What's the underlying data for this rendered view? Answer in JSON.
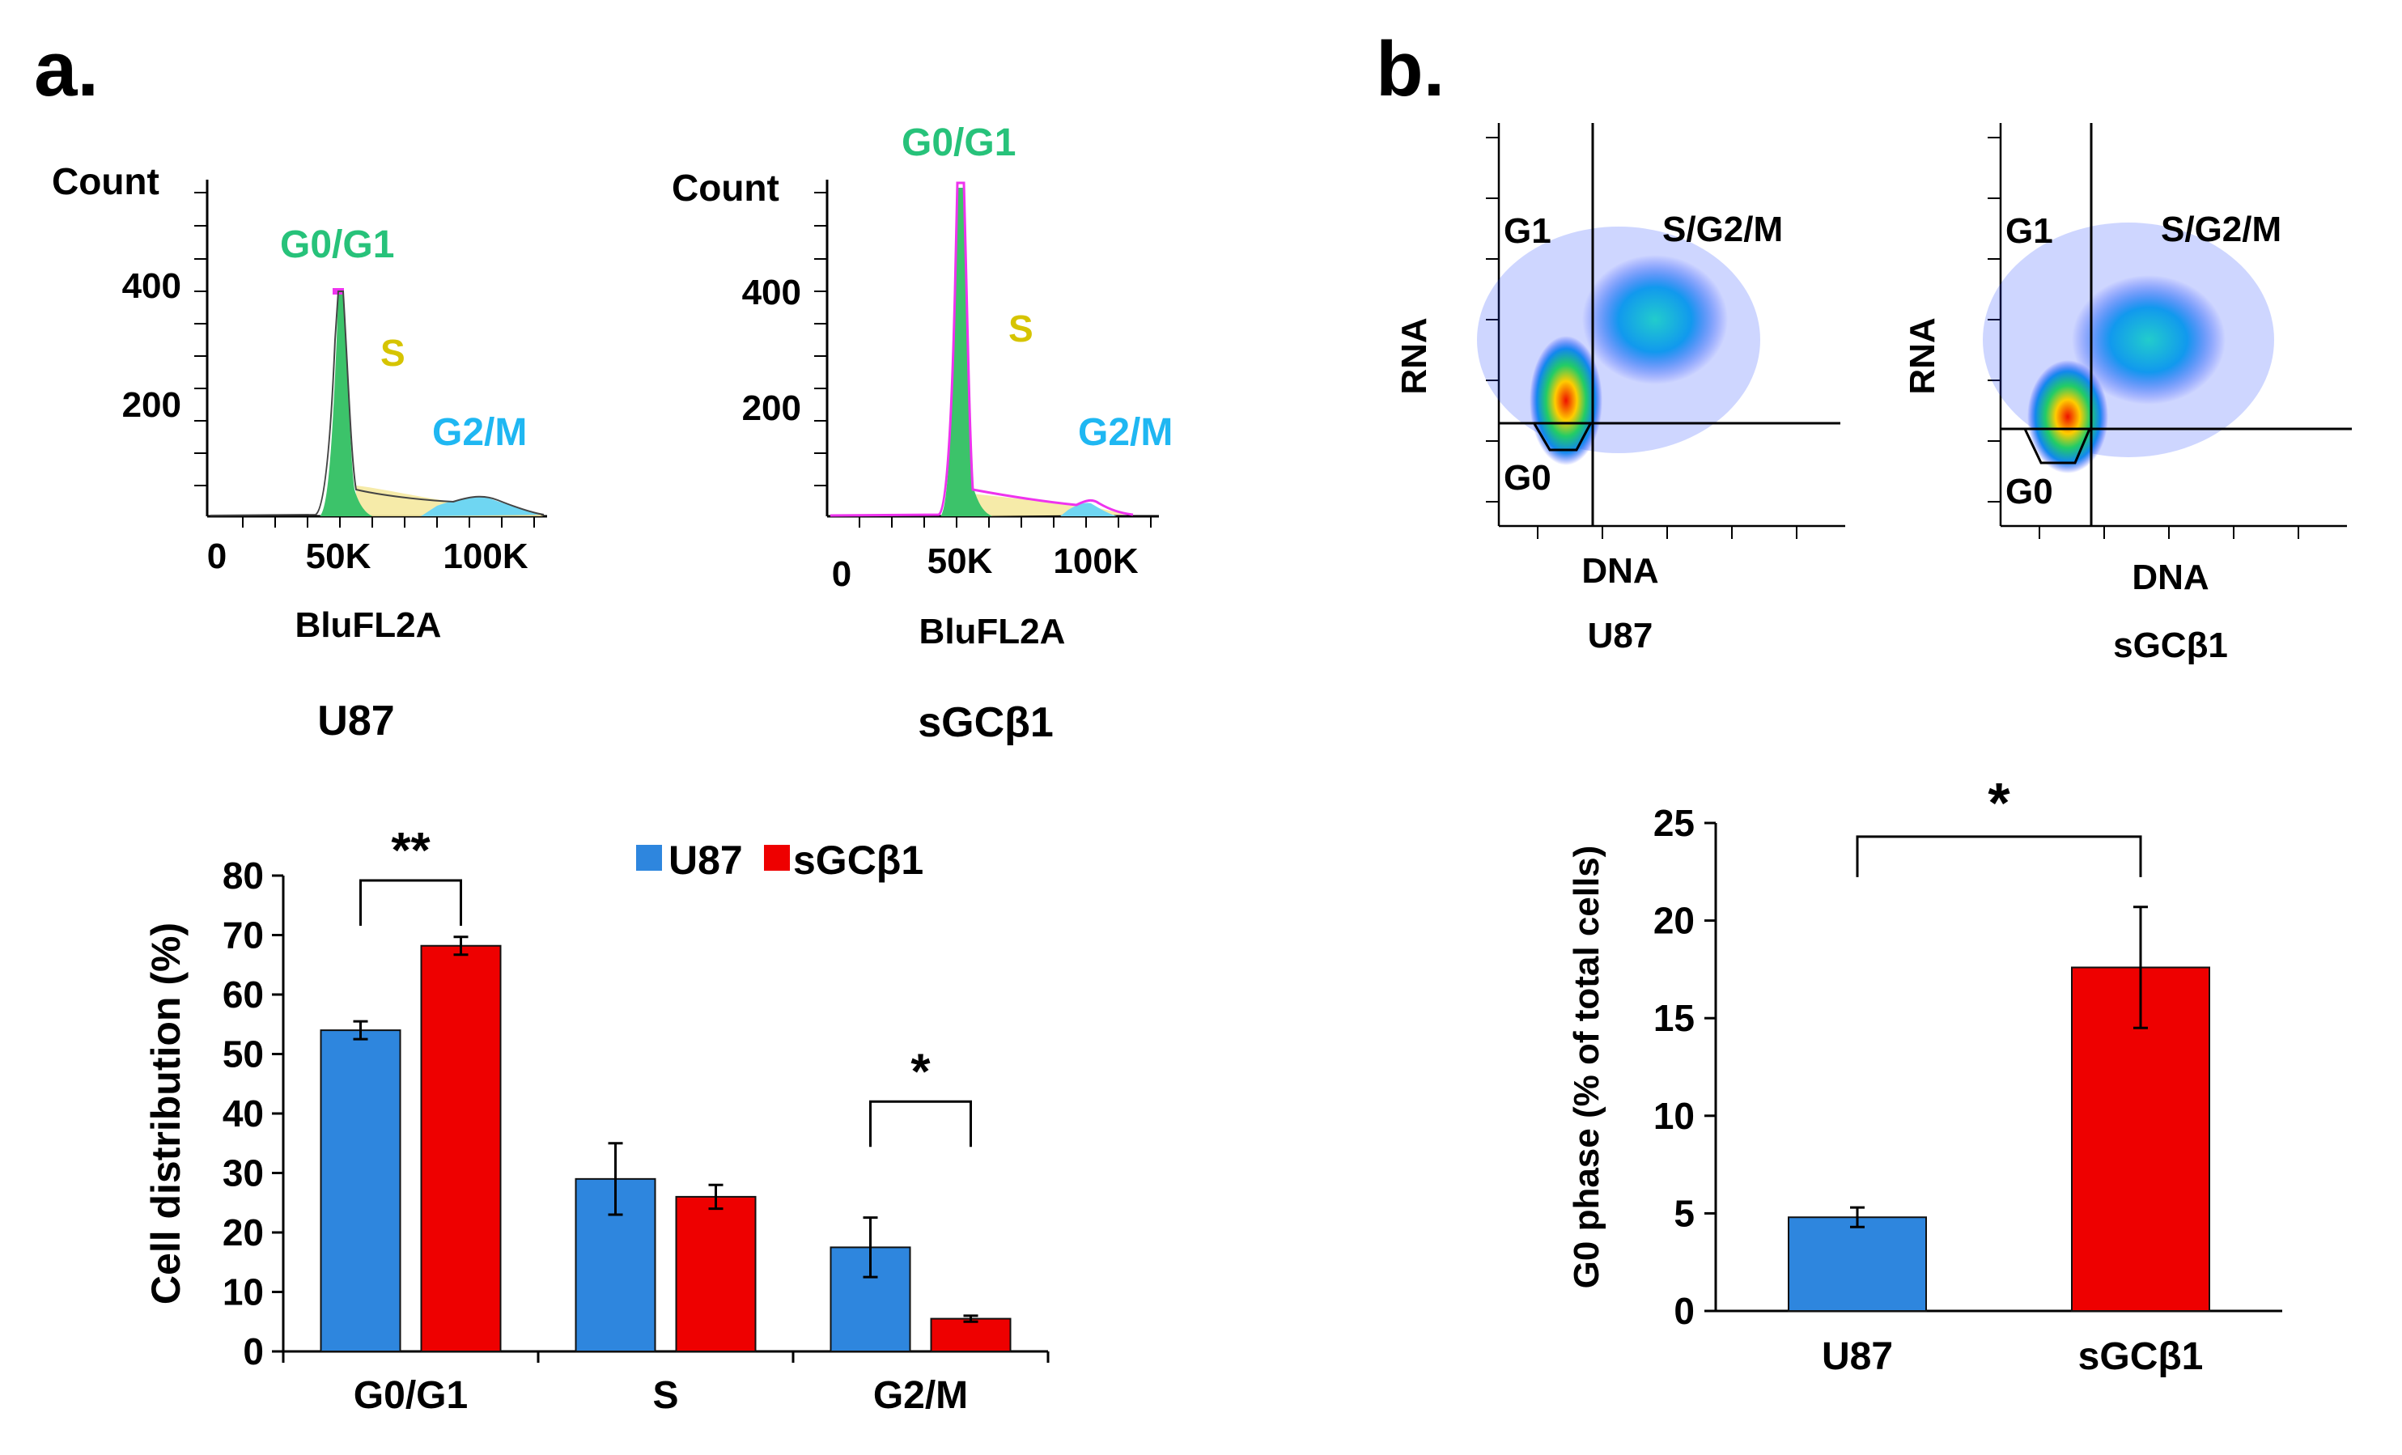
{
  "panel_a": {
    "label": "a.",
    "histograms": [
      {
        "sample": "U87",
        "y_title": "Count",
        "y_ticks": [
          400,
          200
        ],
        "x_ticks": [
          "0",
          "50K",
          "100K"
        ],
        "xlabel": "BluFL2A",
        "peaks": {
          "g0g1": "G0/G1",
          "s": "S",
          "g2m": "G2/M"
        }
      },
      {
        "sample": "sGCβ1",
        "y_title": "Count",
        "y_ticks": [
          400,
          200
        ],
        "x_ticks": [
          "0",
          "50K",
          "100K"
        ],
        "xlabel": "BluFL2A",
        "peaks": {
          "g0g1": "G0/G1",
          "s": "S",
          "g2m": "G2/M"
        }
      }
    ],
    "bar_chart": {
      "legend": [
        "U87",
        "sGCβ1"
      ],
      "significance": [
        "**",
        "*"
      ]
    }
  },
  "panel_b": {
    "label": "b.",
    "scatter_plots": [
      {
        "sample": "U87",
        "ylabel": "RNA",
        "xlabel": "DNA",
        "gates": {
          "g1": "G1",
          "sg2m": "S/G2/M",
          "g0": "G0"
        }
      },
      {
        "sample": "sGCβ1",
        "ylabel": "RNA",
        "xlabel": "DNA",
        "gates": {
          "g1": "G1",
          "sg2m": "S/G2/M",
          "g0": "G0"
        }
      }
    ],
    "bar_chart": {
      "significance": "*"
    }
  },
  "chart_data": [
    {
      "type": "bar",
      "title": "",
      "xlabel": "",
      "ylabel": "Cell distribution (%)",
      "categories": [
        "G0/G1",
        "S",
        "G2/M"
      ],
      "series": [
        {
          "name": "U87",
          "color": "#2e86de",
          "values": [
            54,
            29,
            17.5
          ],
          "errors": [
            1.5,
            6,
            5
          ]
        },
        {
          "name": "sGCβ1",
          "color": "#ee0000",
          "values": [
            68.2,
            26,
            5.5
          ],
          "errors": [
            1.5,
            2,
            0.5
          ]
        }
      ],
      "ylim": [
        0,
        80
      ],
      "yticks": [
        0,
        10,
        20,
        30,
        40,
        50,
        60,
        70,
        80
      ],
      "legend": "top-right"
    },
    {
      "type": "bar",
      "title": "",
      "xlabel": "",
      "ylabel": "G0 phase (% of total cells)",
      "categories": [
        "U87",
        "sGCβ1"
      ],
      "values": [
        4.8,
        17.6
      ],
      "errors": [
        0.5,
        3.1
      ],
      "colors": [
        "#2e86de",
        "#ee0000"
      ],
      "ylim": [
        0,
        25
      ],
      "yticks": [
        0,
        5,
        10,
        15,
        20,
        25
      ]
    }
  ]
}
